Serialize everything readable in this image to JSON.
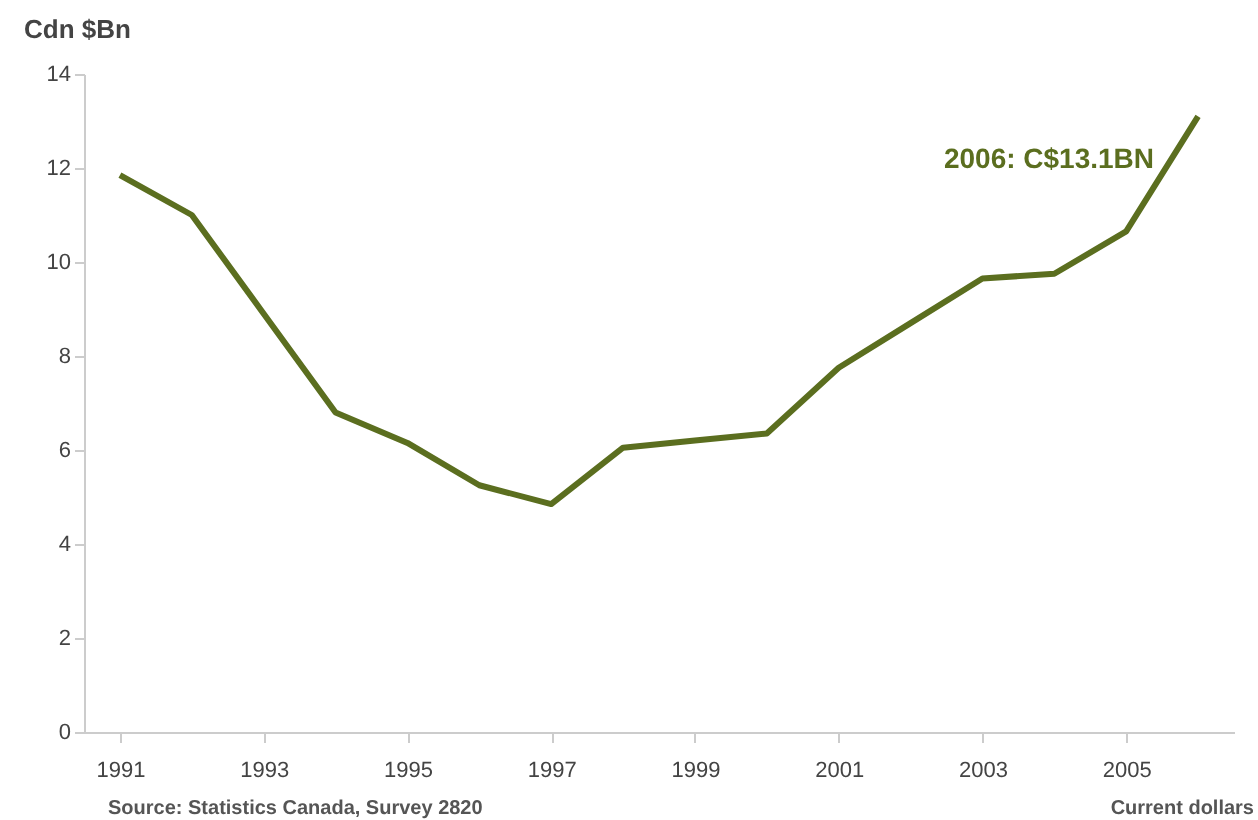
{
  "chart_data": {
    "type": "line",
    "ylabel": "Cdn $Bn",
    "x": [
      1991,
      1992,
      1993,
      1994,
      1995,
      1996,
      1997,
      1998,
      1999,
      2000,
      2001,
      2002,
      2003,
      2004,
      2005,
      2006
    ],
    "series": [
      {
        "color": "#5b6e1f",
        "values": [
          11.85,
          11.0,
          8.9,
          6.8,
          6.15,
          5.25,
          4.85,
          6.05,
          6.2,
          6.35,
          7.75,
          8.7,
          9.65,
          9.75,
          10.65,
          13.1
        ]
      }
    ],
    "xlim": [
      1990.5,
      2006.5
    ],
    "xticks": [
      1991,
      1993,
      1995,
      1997,
      1999,
      2001,
      2003,
      2005
    ],
    "ylim": [
      0,
      14
    ],
    "yticks": [
      0,
      2,
      4,
      6,
      8,
      10,
      12,
      14
    ],
    "annotations": [
      {
        "text": "2006: C$13.1BN",
        "x": 2006,
        "y": 13.1
      },
      "Source: Statistics Canada, Survey 2820",
      "Current dollars"
    ],
    "grid": false,
    "marker": "none",
    "line_style": "solid"
  }
}
